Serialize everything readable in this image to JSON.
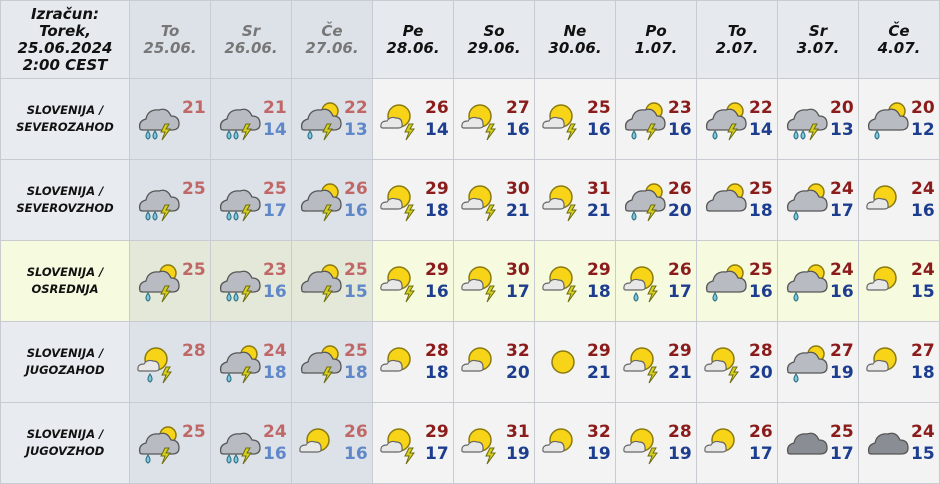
{
  "header": {
    "calc": [
      "Izračun:",
      "Torek,",
      "25.06.2024",
      "2:00 CEST"
    ],
    "days": [
      {
        "d": "To",
        "date": "25.06.",
        "past": true
      },
      {
        "d": "Sr",
        "date": "26.06.",
        "past": true
      },
      {
        "d": "Če",
        "date": "27.06.",
        "past": true
      },
      {
        "d": "Pe",
        "date": "28.06."
      },
      {
        "d": "So",
        "date": "29.06."
      },
      {
        "d": "Ne",
        "date": "30.06."
      },
      {
        "d": "Po",
        "date": "1.07."
      },
      {
        "d": "To",
        "date": "2.07."
      },
      {
        "d": "Sr",
        "date": "3.07."
      },
      {
        "d": "Če",
        "date": "4.07."
      }
    ]
  },
  "colors": {
    "max": "#8b1c1c",
    "min": "#1d3d8f",
    "highlight": "#f6fadf"
  },
  "rows": [
    {
      "loc": [
        "SLOVENIJA /",
        "SEVEROZAHOD"
      ],
      "cells": [
        {
          "icon": "cloud-rain-thunder",
          "max": "21",
          "min": ""
        },
        {
          "icon": "cloud-rain-thunder",
          "max": "21",
          "min": "14"
        },
        {
          "icon": "cloud-sun-rain-thunder",
          "max": "22",
          "min": "13"
        },
        {
          "icon": "sun-cloud-thunder",
          "max": "26",
          "min": "14"
        },
        {
          "icon": "sun-cloud-thunder",
          "max": "27",
          "min": "16"
        },
        {
          "icon": "sun-cloud-thunder",
          "max": "25",
          "min": "16"
        },
        {
          "icon": "cloud-sun-rain-thunder",
          "max": "23",
          "min": "16"
        },
        {
          "icon": "cloud-sun-rain-thunder",
          "max": "22",
          "min": "14"
        },
        {
          "icon": "cloud-rain-thunder",
          "max": "20",
          "min": "13"
        },
        {
          "icon": "cloud-sun-rain",
          "max": "20",
          "min": "12"
        }
      ]
    },
    {
      "loc": [
        "SLOVENIJA /",
        "SEVEROVZHOD"
      ],
      "cells": [
        {
          "icon": "cloud-rain-thunder",
          "max": "25",
          "min": ""
        },
        {
          "icon": "cloud-rain-thunder",
          "max": "25",
          "min": "17"
        },
        {
          "icon": "cloud-sun-thunder",
          "max": "26",
          "min": "16"
        },
        {
          "icon": "sun-cloud-thunder",
          "max": "29",
          "min": "18"
        },
        {
          "icon": "sun-cloud-thunder",
          "max": "30",
          "min": "21"
        },
        {
          "icon": "sun-cloud-thunder",
          "max": "31",
          "min": "21"
        },
        {
          "icon": "cloud-sun-rain-thunder",
          "max": "26",
          "min": "20"
        },
        {
          "icon": "cloud-sun",
          "max": "25",
          "min": "18"
        },
        {
          "icon": "cloud-sun-rain",
          "max": "24",
          "min": "17"
        },
        {
          "icon": "sun-cloud",
          "max": "24",
          "min": "16"
        }
      ]
    },
    {
      "loc": [
        "SLOVENIJA /",
        "OSREDNJA"
      ],
      "highlight": true,
      "cells": [
        {
          "icon": "cloud-sun-rain-thunder",
          "max": "25",
          "min": ""
        },
        {
          "icon": "cloud-rain-thunder",
          "max": "23",
          "min": "16"
        },
        {
          "icon": "cloud-sun-thunder",
          "max": "25",
          "min": "15"
        },
        {
          "icon": "sun-cloud-thunder",
          "max": "29",
          "min": "16"
        },
        {
          "icon": "sun-cloud-thunder",
          "max": "30",
          "min": "17"
        },
        {
          "icon": "sun-cloud-thunder",
          "max": "29",
          "min": "18"
        },
        {
          "icon": "sun-cloud-rain-thunder",
          "max": "26",
          "min": "17"
        },
        {
          "icon": "cloud-sun-rain",
          "max": "25",
          "min": "16"
        },
        {
          "icon": "cloud-sun-rain",
          "max": "24",
          "min": "16"
        },
        {
          "icon": "sun-cloud",
          "max": "24",
          "min": "15"
        }
      ]
    },
    {
      "loc": [
        "SLOVENIJA /",
        "JUGOZAHOD"
      ],
      "cells": [
        {
          "icon": "sun-cloud-rain-thunder",
          "max": "28",
          "min": ""
        },
        {
          "icon": "cloud-sun-rain-thunder",
          "max": "24",
          "min": "18"
        },
        {
          "icon": "cloud-sun-thunder",
          "max": "25",
          "min": "18"
        },
        {
          "icon": "sun-cloud",
          "max": "28",
          "min": "18"
        },
        {
          "icon": "sun-cloud",
          "max": "32",
          "min": "20"
        },
        {
          "icon": "sun",
          "max": "29",
          "min": "21"
        },
        {
          "icon": "sun-cloud-thunder",
          "max": "29",
          "min": "21"
        },
        {
          "icon": "sun-cloud-thunder",
          "max": "28",
          "min": "20"
        },
        {
          "icon": "cloud-sun-rain",
          "max": "27",
          "min": "19"
        },
        {
          "icon": "sun-cloud",
          "max": "27",
          "min": "18"
        }
      ]
    },
    {
      "loc": [
        "SLOVENIJA /",
        "JUGOVZHOD"
      ],
      "cells": [
        {
          "icon": "cloud-sun-rain-thunder",
          "max": "25",
          "min": ""
        },
        {
          "icon": "cloud-rain-thunder",
          "max": "24",
          "min": "16"
        },
        {
          "icon": "sun-cloud",
          "max": "26",
          "min": "16"
        },
        {
          "icon": "sun-cloud-thunder",
          "max": "29",
          "min": "17"
        },
        {
          "icon": "sun-cloud-thunder",
          "max": "31",
          "min": "19"
        },
        {
          "icon": "sun-cloud",
          "max": "32",
          "min": "19"
        },
        {
          "icon": "sun-cloud-thunder",
          "max": "28",
          "min": "19"
        },
        {
          "icon": "sun-cloud",
          "max": "26",
          "min": "17"
        },
        {
          "icon": "cloud",
          "max": "25",
          "min": "17"
        },
        {
          "icon": "cloud",
          "max": "24",
          "min": "15"
        }
      ]
    }
  ]
}
